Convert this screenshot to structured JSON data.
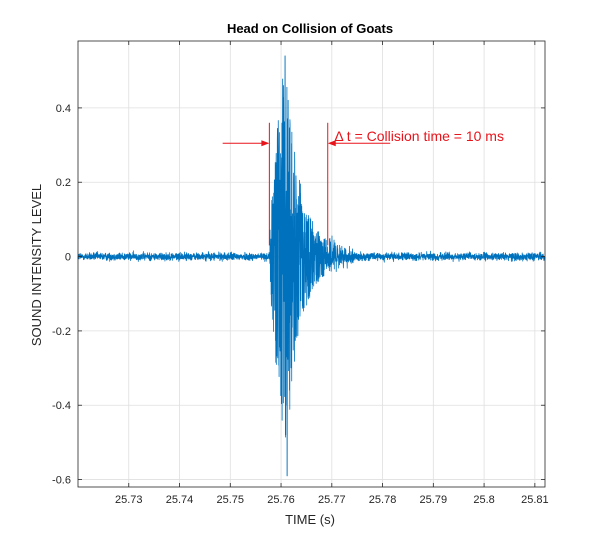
{
  "chart_data": {
    "type": "line",
    "title": "Head on Collision of Goats",
    "xlabel": "TIME (s)",
    "ylabel": "SOUND INTENSITY LEVEL",
    "xlim": [
      25.72,
      25.812
    ],
    "ylim": [
      -0.62,
      0.58
    ],
    "x_ticks": [
      25.73,
      25.74,
      25.75,
      25.76,
      25.77,
      25.78,
      25.79,
      25.8,
      25.81
    ],
    "x_tick_labels": [
      "25.73",
      "25.74",
      "25.75",
      "25.76",
      "25.77",
      "25.78",
      "25.79",
      "25.8",
      "25.81"
    ],
    "y_ticks": [
      -0.6,
      -0.4,
      -0.2,
      0,
      0.2,
      0.4
    ],
    "y_tick_labels": [
      "-0.6",
      "-0.4",
      "-0.2",
      "0",
      "0.2",
      "0.4"
    ],
    "grid": true,
    "series_color": "#0072BD",
    "annotation_color": "#E8141B",
    "series": [
      {
        "signal": {
          "x_start": 25.72,
          "x_end": 25.812,
          "baseline_noise_amplitude": 0.012,
          "burst_onset": 25.7578,
          "burst_peak_time": 25.7608,
          "burst_peak_max": 0.54,
          "burst_peak_min": -0.59,
          "burst_decay_end": 25.7695
        }
      }
    ],
    "annotation": {
      "label": "Δ t = Collision time = 10 ms",
      "start_x": 25.7577,
      "end_x": 25.7692,
      "line_top_y": 0.36,
      "line_bottom_y": 0.03,
      "arrow_y": 0.305,
      "left_arrow_from_x": 25.7485,
      "right_arrow_from_x": 25.7815,
      "label_x": 25.7705,
      "label_y": 0.325
    }
  }
}
